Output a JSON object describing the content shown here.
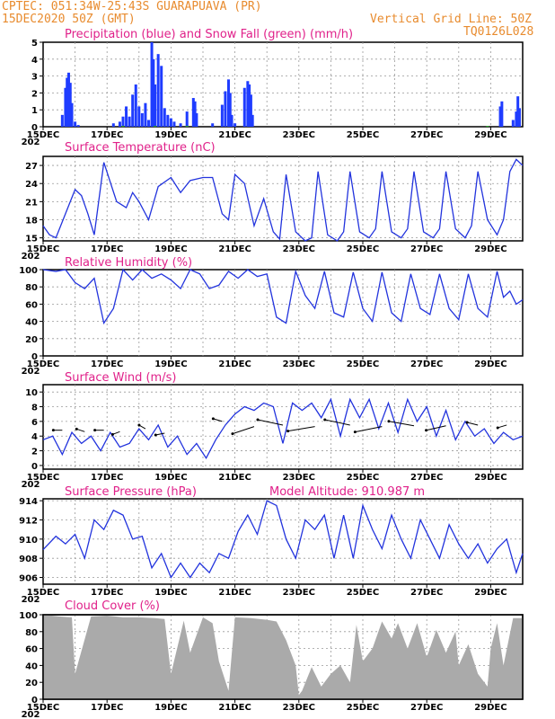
{
  "header": {
    "line1_left": "CPTEC:   051:34W-25:43S   GUARAPUAVA (PR)",
    "line2_left": "15DEC2020 50Z (GMT)",
    "line2_right": "Vertical Grid Line: 50Z",
    "line3_right": "TQ0126L028"
  },
  "colors": {
    "header_text": "#e88b2e",
    "title_text": "#e0218a",
    "line": "#2233dd",
    "precip_bar": "#1f3cff",
    "snow": "#22aa22",
    "cloud_fill": "#aaaaaa"
  },
  "x_axis": {
    "day_start": 15,
    "day_end": 30,
    "tick_labels": [
      "15DEC",
      "17DEC",
      "19DEC",
      "21DEC",
      "23DEC",
      "25DEC",
      "27DEC",
      "29DEC"
    ],
    "tick_days": [
      15,
      17,
      19,
      21,
      23,
      25,
      27,
      29
    ],
    "year_fragment": "202"
  },
  "chart_data": [
    {
      "id": "precip",
      "type": "bar",
      "title": "Precipitation (blue) and Snow Fall (green) (mm/h)",
      "ylim": [
        0,
        5
      ],
      "yticks": [
        0,
        1,
        2,
        3,
        4,
        5
      ],
      "series": [
        {
          "name": "Precipitation",
          "x_day": [
            15.6,
            15.7,
            15.75,
            15.8,
            15.85,
            15.9,
            16.0,
            16.1,
            17.2,
            17.4,
            17.5,
            17.6,
            17.7,
            17.8,
            17.9,
            18.0,
            18.1,
            18.2,
            18.3,
            18.4,
            18.45,
            18.5,
            18.6,
            18.7,
            18.8,
            18.9,
            19.0,
            19.1,
            19.3,
            19.5,
            19.7,
            19.75,
            19.8,
            20.3,
            20.6,
            20.7,
            20.8,
            20.85,
            20.9,
            21.0,
            21.3,
            21.4,
            21.45,
            21.5,
            21.55,
            29.3,
            29.35,
            29.7,
            29.8,
            29.85,
            29.9
          ],
          "values": [
            0.7,
            2.3,
            2.9,
            3.2,
            2.6,
            1.4,
            0.3,
            0.1,
            0.2,
            0.3,
            0.6,
            1.2,
            0.6,
            1.9,
            2.5,
            1.2,
            0.8,
            1.4,
            0.4,
            5.0,
            4.0,
            2.5,
            4.3,
            3.6,
            1.1,
            0.7,
            0.5,
            0.3,
            0.2,
            0.9,
            1.7,
            1.5,
            0.8,
            0.2,
            1.3,
            2.1,
            2.8,
            2.0,
            0.7,
            0.2,
            2.3,
            2.7,
            2.5,
            1.9,
            0.7,
            1.2,
            1.5,
            0.4,
            0.9,
            1.8,
            1.1
          ]
        },
        {
          "name": "Snow Fall",
          "x_day": [
            17.5,
            18.5,
            19.5,
            28.9
          ],
          "values": [
            0.05,
            0.05,
            0.05,
            0.05
          ]
        }
      ]
    },
    {
      "id": "temp",
      "type": "line",
      "title": "Surface Temperature (nC)",
      "ylim": [
        14.5,
        28.5
      ],
      "yticks": [
        15,
        18,
        21,
        24,
        27
      ],
      "series": [
        {
          "name": "Temperature",
          "x_day": [
            15.0,
            15.2,
            15.4,
            15.7,
            16.0,
            16.2,
            16.4,
            16.6,
            16.9,
            17.3,
            17.6,
            17.8,
            18.0,
            18.3,
            18.6,
            19.0,
            19.3,
            19.6,
            20.0,
            20.3,
            20.6,
            20.8,
            21.0,
            21.3,
            21.6,
            21.9,
            22.2,
            22.4,
            22.6,
            22.9,
            23.2,
            23.4,
            23.6,
            23.9,
            24.2,
            24.4,
            24.6,
            24.9,
            25.2,
            25.4,
            25.6,
            25.9,
            26.2,
            26.4,
            26.6,
            26.9,
            27.2,
            27.4,
            27.6,
            27.9,
            28.2,
            28.4,
            28.6,
            28.9,
            29.2,
            29.4,
            29.6,
            29.8,
            30.0
          ],
          "values": [
            17.0,
            15.5,
            15.0,
            19.0,
            23.0,
            22.0,
            19.0,
            15.5,
            27.5,
            21.0,
            20.0,
            22.5,
            21.0,
            18.0,
            23.5,
            25.0,
            22.5,
            24.5,
            25.0,
            25.0,
            19.0,
            18.0,
            25.5,
            24.0,
            17.0,
            21.5,
            16.0,
            14.8,
            25.5,
            16.0,
            14.5,
            15.0,
            26.0,
            15.5,
            14.5,
            16.0,
            26.0,
            16.0,
            15.0,
            16.5,
            26.0,
            16.0,
            15.0,
            16.5,
            26.0,
            16.0,
            15.0,
            16.5,
            26.0,
            16.5,
            15.0,
            17.0,
            26.0,
            18.0,
            15.5,
            18.0,
            26.0,
            28.0,
            27.0
          ]
        }
      ]
    },
    {
      "id": "rh",
      "type": "line",
      "title": "Relative Humidity (%)",
      "ylim": [
        0,
        100
      ],
      "yticks": [
        0,
        20,
        40,
        60,
        80,
        100
      ],
      "series": [
        {
          "name": "Relative Humidity",
          "x_day": [
            15.0,
            15.4,
            15.7,
            16.0,
            16.3,
            16.6,
            16.9,
            17.2,
            17.5,
            17.8,
            18.1,
            18.4,
            18.7,
            19.0,
            19.3,
            19.6,
            19.9,
            20.2,
            20.5,
            20.8,
            21.1,
            21.4,
            21.7,
            22.0,
            22.3,
            22.6,
            22.9,
            23.2,
            23.5,
            23.8,
            24.1,
            24.4,
            24.7,
            25.0,
            25.3,
            25.6,
            25.9,
            26.2,
            26.5,
            26.8,
            27.1,
            27.4,
            27.7,
            28.0,
            28.3,
            28.6,
            28.9,
            29.2,
            29.4,
            29.6,
            29.8,
            30.0
          ],
          "values": [
            100,
            98,
            100,
            85,
            78,
            90,
            38,
            55,
            100,
            88,
            100,
            90,
            95,
            88,
            78,
            100,
            95,
            78,
            82,
            98,
            90,
            100,
            92,
            95,
            45,
            38,
            98,
            70,
            55,
            98,
            50,
            45,
            97,
            55,
            40,
            97,
            50,
            40,
            95,
            55,
            48,
            95,
            55,
            42,
            95,
            55,
            45,
            98,
            68,
            75,
            60,
            65
          ]
        }
      ]
    },
    {
      "id": "wind",
      "type": "line",
      "title": "Surface Wind (m/s)",
      "ylim": [
        -0.5,
        11
      ],
      "yticks": [
        0,
        2,
        4,
        6,
        8,
        10
      ],
      "series": [
        {
          "name": "Wind speed",
          "x_day": [
            15.0,
            15.3,
            15.6,
            15.9,
            16.2,
            16.5,
            16.8,
            17.1,
            17.4,
            17.7,
            18.0,
            18.3,
            18.6,
            18.9,
            19.2,
            19.5,
            19.8,
            20.1,
            20.4,
            20.7,
            21.0,
            21.3,
            21.6,
            21.9,
            22.2,
            22.5,
            22.8,
            23.1,
            23.4,
            23.7,
            24.0,
            24.3,
            24.6,
            24.9,
            25.2,
            25.5,
            25.8,
            26.1,
            26.4,
            26.7,
            27.0,
            27.3,
            27.6,
            27.9,
            28.2,
            28.5,
            28.8,
            29.1,
            29.4,
            29.7,
            30.0
          ],
          "values": [
            3.5,
            4.0,
            1.5,
            4.5,
            3.0,
            4.0,
            2.0,
            4.5,
            2.5,
            3.0,
            5.0,
            3.5,
            5.5,
            2.5,
            4.0,
            1.5,
            3.0,
            1.0,
            3.5,
            5.5,
            7.0,
            8.0,
            7.5,
            8.5,
            8.0,
            3.0,
            8.5,
            7.5,
            8.5,
            6.5,
            9.0,
            4.0,
            9.0,
            6.5,
            9.0,
            5.0,
            8.5,
            4.5,
            9.0,
            6.0,
            8.0,
            4.0,
            7.5,
            3.5,
            6.0,
            4.0,
            5.0,
            3.0,
            4.5,
            3.5,
            4.0
          ]
        }
      ]
    },
    {
      "id": "pressure",
      "type": "line",
      "title": "Surface Pressure (hPa)",
      "annotation": "Model Altitude:  910.987  m",
      "ylim": [
        905.3,
        914.2
      ],
      "yticks": [
        906,
        908,
        910,
        912,
        914
      ],
      "series": [
        {
          "name": "Pressure",
          "x_day": [
            15.0,
            15.4,
            15.7,
            16.0,
            16.3,
            16.6,
            16.9,
            17.2,
            17.5,
            17.8,
            18.1,
            18.4,
            18.7,
            19.0,
            19.3,
            19.6,
            19.9,
            20.2,
            20.5,
            20.8,
            21.1,
            21.4,
            21.7,
            22.0,
            22.3,
            22.6,
            22.9,
            23.2,
            23.5,
            23.8,
            24.1,
            24.4,
            24.7,
            25.0,
            25.3,
            25.6,
            25.9,
            26.2,
            26.5,
            26.8,
            27.1,
            27.4,
            27.7,
            28.0,
            28.3,
            28.6,
            28.9,
            29.2,
            29.5,
            29.8,
            30.0
          ],
          "values": [
            908.9,
            910.3,
            909.5,
            910.5,
            908.0,
            912.0,
            911.0,
            913.0,
            912.5,
            910.0,
            910.3,
            907.0,
            908.5,
            906.0,
            907.5,
            906.0,
            907.5,
            906.5,
            908.5,
            908.0,
            910.8,
            912.5,
            910.5,
            914.0,
            913.5,
            910.0,
            908.0,
            912.0,
            911.0,
            912.5,
            908.0,
            912.5,
            908.0,
            913.5,
            911.0,
            909.0,
            912.5,
            910.0,
            908.0,
            912.0,
            910.0,
            908.0,
            911.5,
            909.5,
            908.0,
            909.5,
            907.5,
            909.0,
            910.0,
            906.5,
            908.5
          ]
        }
      ]
    },
    {
      "id": "cloud",
      "type": "area",
      "title": "Cloud Cover (%)",
      "ylim": [
        0,
        100
      ],
      "yticks": [
        0,
        20,
        40,
        60,
        80,
        100
      ],
      "series": [
        {
          "name": "Cloud Cover",
          "x_day": [
            15.0,
            15.5,
            15.9,
            16.0,
            16.5,
            17.0,
            17.5,
            18.0,
            18.5,
            18.8,
            19.0,
            19.4,
            19.6,
            20.0,
            20.3,
            20.5,
            20.8,
            21.0,
            21.5,
            22.0,
            22.3,
            22.6,
            22.9,
            23.0,
            23.1,
            23.4,
            23.7,
            24.0,
            24.3,
            24.6,
            24.8,
            25.0,
            25.3,
            25.6,
            25.9,
            26.1,
            26.4,
            26.7,
            27.0,
            27.3,
            27.6,
            27.9,
            28.0,
            28.3,
            28.6,
            28.9,
            29.0,
            29.2,
            29.4,
            29.7,
            30.0
          ],
          "values": [
            100,
            98,
            97,
            30,
            98,
            99,
            97,
            97,
            96,
            95,
            30,
            93,
            55,
            97,
            90,
            45,
            10,
            97,
            96,
            94,
            92,
            70,
            40,
            5,
            10,
            38,
            15,
            30,
            40,
            20,
            88,
            45,
            60,
            92,
            72,
            90,
            60,
            90,
            50,
            82,
            55,
            80,
            40,
            65,
            30,
            15,
            60,
            90,
            40,
            96,
            96
          ]
        }
      ]
    }
  ]
}
